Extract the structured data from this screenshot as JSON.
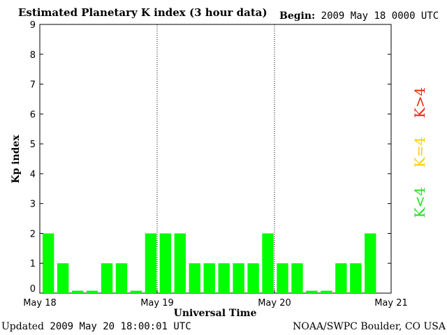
{
  "header": {
    "title": "Estimated Planetary K index (3 hour data)",
    "begin_label": "Begin:",
    "begin_value": "2009 May 18 0000 UTC"
  },
  "footer": {
    "updated_label": "Updated",
    "updated_value": "2009 May 20 18:00:01 UTC",
    "credit": "NOAA/SWPC Boulder, CO USA"
  },
  "chart_data": {
    "type": "bar",
    "title": "Estimated Planetary K index (3 hour data)",
    "ylabel": "Kp index",
    "xlabel": "Universal Time",
    "ylim": [
      0,
      9
    ],
    "yticks": [
      "0",
      "1",
      "2",
      "3",
      "4",
      "5",
      "6",
      "7",
      "8",
      "9"
    ],
    "xticks": [
      "May 18",
      "May 19",
      "May 20",
      "May 21"
    ],
    "bar_color": "#00ff00",
    "values": [
      2,
      1,
      0,
      0,
      1,
      1,
      0,
      2,
      2,
      2,
      1,
      1,
      1,
      1,
      1,
      2,
      1,
      1,
      0,
      0,
      1,
      1,
      2
    ],
    "legend": [
      {
        "label": "K<4",
        "color": "#22dd22"
      },
      {
        "label": "K=4",
        "color": "#ffcc00"
      },
      {
        "label": "K>4",
        "color": "#ee2200"
      }
    ]
  }
}
